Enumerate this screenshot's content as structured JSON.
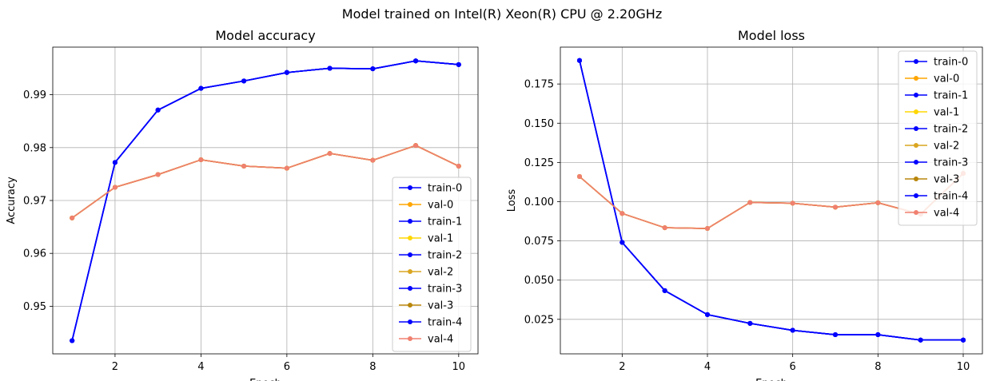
{
  "suptitle": "Model trained on Intel(R) Xeon(R) CPU @ 2.20GHz",
  "chart_data": [
    {
      "type": "line",
      "title": "Model accuracy",
      "xlabel": "Epoch",
      "ylabel": "Accuracy",
      "grid": true,
      "legend_position": "lower-right",
      "xlim": [
        0.55,
        10.45
      ],
      "ylim": [
        0.941,
        0.999
      ],
      "x": [
        1,
        2,
        3,
        4,
        5,
        6,
        7,
        8,
        9,
        10
      ],
      "xticks": [
        2,
        4,
        6,
        8,
        10
      ],
      "yticks": [
        0.95,
        0.96,
        0.97,
        0.98,
        0.99
      ],
      "ytick_labels": [
        "0.95",
        "0.96",
        "0.97",
        "0.98",
        "0.99"
      ],
      "series": [
        {
          "name": "train-0",
          "color": "#0000ff",
          "values": [
            0.9435,
            0.9772,
            0.9871,
            0.9912,
            0.9926,
            0.9942,
            0.995,
            0.9949,
            0.9964,
            0.9957
          ]
        },
        {
          "name": "val-0",
          "color": "#ffa500",
          "values": [
            0.9667,
            0.9725,
            0.9749,
            0.9777,
            0.9765,
            0.9761,
            0.9789,
            0.9776,
            0.9804,
            0.9765
          ]
        },
        {
          "name": "train-1",
          "color": "#0000ff",
          "values": [
            0.9435,
            0.9772,
            0.9871,
            0.9912,
            0.9926,
            0.9942,
            0.995,
            0.9949,
            0.9964,
            0.9957
          ]
        },
        {
          "name": "val-1",
          "color": "#ffd700",
          "values": [
            0.9667,
            0.9725,
            0.9749,
            0.9777,
            0.9765,
            0.9761,
            0.9789,
            0.9776,
            0.9804,
            0.9765
          ]
        },
        {
          "name": "train-2",
          "color": "#0000ff",
          "values": [
            0.9435,
            0.9772,
            0.9871,
            0.9912,
            0.9926,
            0.9942,
            0.995,
            0.9949,
            0.9964,
            0.9957
          ]
        },
        {
          "name": "val-2",
          "color": "#daa520",
          "values": [
            0.9667,
            0.9725,
            0.9749,
            0.9777,
            0.9765,
            0.9761,
            0.9789,
            0.9776,
            0.9804,
            0.9765
          ]
        },
        {
          "name": "train-3",
          "color": "#0000ff",
          "values": [
            0.9435,
            0.9772,
            0.9871,
            0.9912,
            0.9926,
            0.9942,
            0.995,
            0.9949,
            0.9964,
            0.9957
          ]
        },
        {
          "name": "val-3",
          "color": "#b8860b",
          "values": [
            0.9667,
            0.9725,
            0.9749,
            0.9777,
            0.9765,
            0.9761,
            0.9789,
            0.9776,
            0.9804,
            0.9765
          ]
        },
        {
          "name": "train-4",
          "color": "#0000ff",
          "values": [
            0.9435,
            0.9772,
            0.9871,
            0.9912,
            0.9926,
            0.9942,
            0.995,
            0.9949,
            0.9964,
            0.9957
          ]
        },
        {
          "name": "val-4",
          "color": "#f08070",
          "values": [
            0.9667,
            0.9725,
            0.9749,
            0.9777,
            0.9765,
            0.9761,
            0.9789,
            0.9776,
            0.9804,
            0.9765
          ]
        }
      ]
    },
    {
      "type": "line",
      "title": "Model loss",
      "xlabel": "Epoch",
      "ylabel": "Loss",
      "grid": true,
      "legend_position": "upper-right",
      "xlim": [
        0.55,
        10.45
      ],
      "ylim": [
        0.003,
        0.1985
      ],
      "x": [
        1,
        2,
        3,
        4,
        5,
        6,
        7,
        8,
        9,
        10
      ],
      "xticks": [
        2,
        4,
        6,
        8,
        10
      ],
      "yticks": [
        0.025,
        0.05,
        0.075,
        0.1,
        0.125,
        0.15,
        0.175
      ],
      "ytick_labels": [
        "0.025",
        "0.050",
        "0.075",
        "0.100",
        "0.125",
        "0.150",
        "0.175"
      ],
      "series": [
        {
          "name": "train-0",
          "color": "#0000ff",
          "values": [
            0.19,
            0.074,
            0.0433,
            0.028,
            0.0224,
            0.018,
            0.0152,
            0.0152,
            0.0118,
            0.0118
          ]
        },
        {
          "name": "val-0",
          "color": "#ffa500",
          "values": [
            0.116,
            0.0925,
            0.0834,
            0.0829,
            0.0995,
            0.099,
            0.0965,
            0.0993,
            0.092,
            0.118
          ]
        },
        {
          "name": "train-1",
          "color": "#0000ff",
          "values": [
            0.19,
            0.074,
            0.0433,
            0.028,
            0.0224,
            0.018,
            0.0152,
            0.0152,
            0.0118,
            0.0118
          ]
        },
        {
          "name": "val-1",
          "color": "#ffd700",
          "values": [
            0.116,
            0.0925,
            0.0834,
            0.0829,
            0.0995,
            0.099,
            0.0965,
            0.0993,
            0.092,
            0.118
          ]
        },
        {
          "name": "train-2",
          "color": "#0000ff",
          "values": [
            0.19,
            0.074,
            0.0433,
            0.028,
            0.0224,
            0.018,
            0.0152,
            0.0152,
            0.0118,
            0.0118
          ]
        },
        {
          "name": "val-2",
          "color": "#daa520",
          "values": [
            0.116,
            0.0925,
            0.0834,
            0.0829,
            0.0995,
            0.099,
            0.0965,
            0.0993,
            0.092,
            0.118
          ]
        },
        {
          "name": "train-3",
          "color": "#0000ff",
          "values": [
            0.19,
            0.074,
            0.0433,
            0.028,
            0.0224,
            0.018,
            0.0152,
            0.0152,
            0.0118,
            0.0118
          ]
        },
        {
          "name": "val-3",
          "color": "#b8860b",
          "values": [
            0.116,
            0.0925,
            0.0834,
            0.0829,
            0.0995,
            0.099,
            0.0965,
            0.0993,
            0.092,
            0.118
          ]
        },
        {
          "name": "train-4",
          "color": "#0000ff",
          "values": [
            0.19,
            0.074,
            0.0433,
            0.028,
            0.0224,
            0.018,
            0.0152,
            0.0152,
            0.0118,
            0.0118
          ]
        },
        {
          "name": "val-4",
          "color": "#f08070",
          "values": [
            0.116,
            0.0925,
            0.0834,
            0.0829,
            0.0995,
            0.099,
            0.0965,
            0.0993,
            0.092,
            0.118
          ]
        }
      ]
    }
  ]
}
